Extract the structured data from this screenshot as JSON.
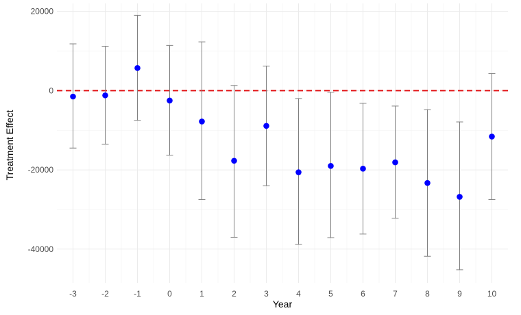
{
  "chart_data": {
    "type": "scatter",
    "title": "",
    "xlabel": "Year",
    "ylabel": "Treatment Effect",
    "x": [
      -3,
      -2,
      -1,
      0,
      1,
      2,
      3,
      4,
      5,
      6,
      7,
      8,
      9,
      10
    ],
    "x_tick_labels": [
      "-3",
      "-2",
      "-1",
      "0",
      "1",
      "2",
      "3",
      "4",
      "5",
      "6",
      "7",
      "8",
      "9",
      "10"
    ],
    "y": [
      -1500,
      -1200,
      5700,
      -2500,
      -7800,
      -17700,
      -8900,
      -20600,
      -19000,
      -19700,
      -18100,
      -23300,
      -26800,
      -11600
    ],
    "ci_lower": [
      -14500,
      -13500,
      -7500,
      -16300,
      -27500,
      -37000,
      -24000,
      -38800,
      -37100,
      -36200,
      -32200,
      -41800,
      -45200,
      -27500
    ],
    "ci_upper": [
      11800,
      11200,
      19000,
      11400,
      12300,
      1300,
      6200,
      -2000,
      -400,
      -3200,
      -3900,
      -4800,
      -7900,
      4300
    ],
    "y_ticks": [
      20000,
      0,
      -20000,
      -40000
    ],
    "y_tick_labels": [
      "20000",
      "0",
      "-20000",
      "-40000"
    ],
    "xlim": [
      -3.5,
      10.5
    ],
    "ylim": [
      -48500,
      22000
    ],
    "reference_line": {
      "y": 0,
      "style": "dashed",
      "color": "#e31a1c"
    },
    "point_color": "#0000ff",
    "errorbar_color": "#7f7f7f",
    "grid": true,
    "legend": "none"
  }
}
